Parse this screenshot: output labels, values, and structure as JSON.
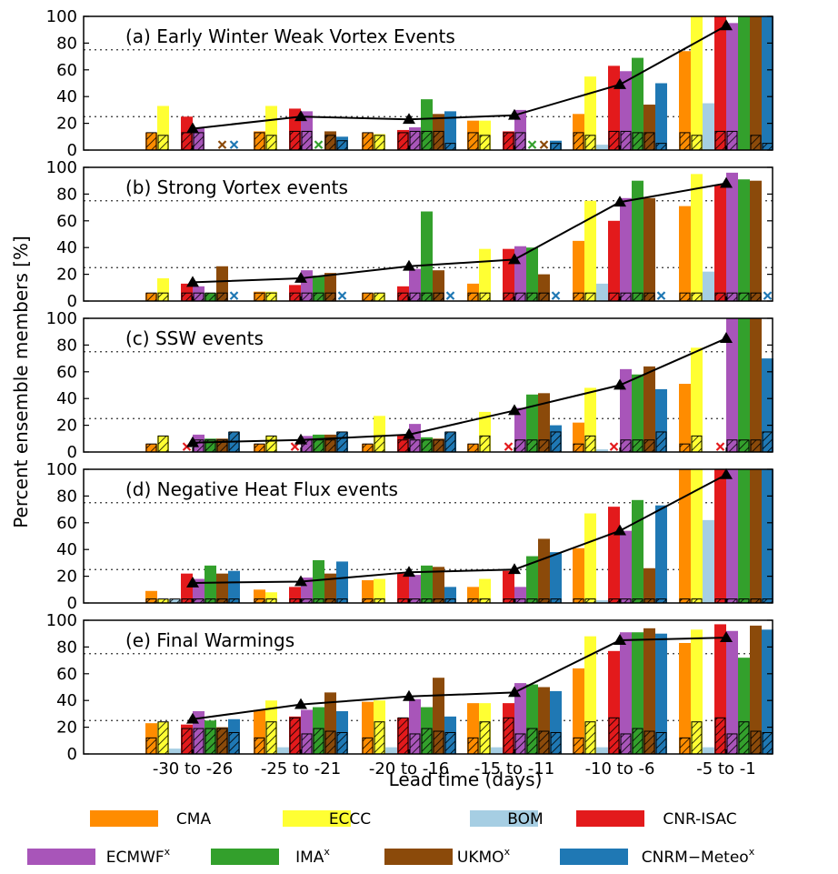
{
  "chart_data": {
    "type": "bar",
    "ylabel": "Percent ensemble members [%]",
    "xlabel": "Lead time (days)",
    "categories": [
      "-30 to -26",
      "-25 to -21",
      "-20 to -16",
      "-15 to -11",
      "-10 to -6",
      "-5 to -1"
    ],
    "ylim": [
      0,
      100
    ],
    "yticks": [
      0,
      20,
      40,
      60,
      80,
      100
    ],
    "reference_lines": [
      25,
      75
    ],
    "models": [
      {
        "name": "CMA",
        "sup": "",
        "color": "#ff8c00"
      },
      {
        "name": "ECCC",
        "sup": "",
        "color": "#ffff33"
      },
      {
        "name": "BOM",
        "sup": "",
        "color": "#a6cee3"
      },
      {
        "name": "CNR-ISAC",
        "sup": "",
        "color": "#e31a1c"
      },
      {
        "name": "ECMWF",
        "sup": "x",
        "color": "#a855b9"
      },
      {
        "name": "IMA",
        "sup": "x",
        "color": "#33a02c"
      },
      {
        "name": "UKMO",
        "sup": "x",
        "color": "#8b4a0a"
      },
      {
        "name": "CNRM−Meteo",
        "sup": "x",
        "color": "#1f78b4"
      }
    ],
    "panels": [
      {
        "title": "(a) Early Winter Weak Vortex Events",
        "values": [
          [
            13,
            33,
            null,
            25,
            17,
            null,
            null,
            null
          ],
          [
            14,
            33,
            null,
            31,
            29,
            null,
            14,
            10
          ],
          [
            13,
            12,
            null,
            15,
            17,
            38,
            27,
            29
          ],
          [
            22,
            22,
            null,
            14,
            30,
            null,
            null,
            7
          ],
          [
            27,
            55,
            4,
            63,
            59,
            69,
            34,
            50
          ],
          [
            74,
            100,
            35,
            100,
            95,
            100,
            100,
            100
          ]
        ],
        "hatched": [
          [
            13,
            11,
            null,
            13,
            13,
            null,
            null,
            null
          ],
          [
            13,
            11,
            null,
            14,
            14,
            null,
            11,
            7
          ],
          [
            13,
            11,
            null,
            13,
            14,
            14,
            14,
            5
          ],
          [
            13,
            11,
            null,
            13,
            13,
            null,
            null,
            5
          ],
          [
            13,
            11,
            null,
            14,
            14,
            13,
            13,
            5
          ],
          [
            13,
            11,
            null,
            14,
            14,
            null,
            11,
            5
          ]
        ],
        "crosses": [
          [
            null,
            null,
            null,
            null,
            null,
            null,
            "UKMO",
            "CNRM−Meteo"
          ],
          [
            null,
            null,
            null,
            null,
            null,
            "IMA",
            null,
            null
          ],
          [],
          [
            null,
            null,
            null,
            null,
            null,
            "IMA",
            "UKMO",
            null
          ],
          [],
          [
            null,
            null,
            null,
            null,
            null,
            "IMA",
            null,
            null
          ]
        ],
        "ensemble_mean": [
          16,
          25,
          23,
          26,
          49,
          93
        ]
      },
      {
        "title": "(b) Strong Vortex events",
        "values": [
          [
            6,
            17,
            null,
            13,
            11,
            6,
            26,
            null
          ],
          [
            7,
            7,
            null,
            12,
            23,
            19,
            21,
            null
          ],
          [
            6,
            6,
            null,
            11,
            24,
            67,
            23,
            null
          ],
          [
            13,
            39,
            null,
            39,
            41,
            40,
            20,
            null
          ],
          [
            45,
            75,
            13,
            60,
            77,
            90,
            77,
            null
          ],
          [
            71,
            95,
            22,
            87,
            96,
            91,
            90,
            null
          ]
        ],
        "hatched": [
          [
            6,
            6,
            null,
            6,
            6,
            6,
            6,
            null
          ],
          [
            6,
            6,
            null,
            6,
            6,
            6,
            6,
            null
          ],
          [
            6,
            6,
            null,
            6,
            6,
            6,
            6,
            null
          ],
          [
            6,
            6,
            null,
            6,
            6,
            6,
            6,
            null
          ],
          [
            6,
            6,
            null,
            6,
            6,
            6,
            6,
            null
          ],
          [
            6,
            6,
            null,
            6,
            6,
            6,
            6,
            null
          ]
        ],
        "crosses": [
          [
            null,
            null,
            null,
            null,
            null,
            null,
            null,
            "CNRM−Meteo"
          ],
          [
            null,
            null,
            null,
            null,
            null,
            null,
            null,
            "CNRM−Meteo"
          ],
          [
            null,
            null,
            null,
            null,
            null,
            null,
            null,
            "CNRM−Meteo"
          ],
          [
            null,
            null,
            null,
            null,
            null,
            null,
            null,
            "CNRM−Meteo"
          ],
          [
            null,
            null,
            null,
            null,
            null,
            null,
            null,
            "CNRM−Meteo"
          ],
          [
            null,
            null,
            null,
            null,
            null,
            null,
            null,
            "CNRM−Meteo"
          ]
        ],
        "ensemble_mean": [
          14,
          17,
          26,
          31,
          74,
          88
        ]
      },
      {
        "title": "(c) SSW events",
        "values": [
          [
            6,
            12,
            null,
            null,
            13,
            10,
            10,
            15
          ],
          [
            6,
            12,
            null,
            null,
            12,
            13,
            13,
            15
          ],
          [
            6,
            27,
            null,
            13,
            21,
            11,
            10,
            15
          ],
          [
            6,
            30,
            null,
            null,
            33,
            43,
            44,
            20
          ],
          [
            22,
            48,
            2,
            null,
            62,
            58,
            64,
            47
          ],
          [
            51,
            78,
            null,
            null,
            100,
            100,
            100,
            70
          ]
        ],
        "hatched": [
          [
            6,
            12,
            null,
            null,
            9,
            9,
            9,
            15
          ],
          [
            6,
            12,
            null,
            null,
            9,
            9,
            9,
            15
          ],
          [
            6,
            12,
            null,
            9,
            9,
            9,
            9,
            15
          ],
          [
            6,
            12,
            null,
            null,
            9,
            9,
            9,
            15
          ],
          [
            6,
            12,
            null,
            null,
            9,
            9,
            9,
            15
          ],
          [
            6,
            12,
            null,
            null,
            9,
            9,
            9,
            15
          ]
        ],
        "crosses": [
          [
            null,
            null,
            null,
            "CNR-ISAC",
            null,
            null,
            null,
            null
          ],
          [
            null,
            null,
            null,
            "CNR-ISAC",
            null,
            null,
            null,
            null
          ],
          [],
          [
            null,
            null,
            null,
            "CNR-ISAC",
            null,
            null,
            null,
            null
          ],
          [
            null,
            null,
            null,
            "CNR-ISAC",
            null,
            null,
            null,
            null
          ],
          [
            null,
            null,
            null,
            "CNR-ISAC",
            null,
            null,
            null,
            null
          ]
        ],
        "ensemble_mean": [
          7,
          9,
          13,
          31,
          50,
          85
        ]
      },
      {
        "title": "(d) Negative Heat Flux events",
        "values": [
          [
            9,
            3,
            3,
            22,
            18,
            28,
            22,
            24
          ],
          [
            10,
            8,
            null,
            12,
            19,
            32,
            22,
            31
          ],
          [
            17,
            18,
            null,
            22,
            21,
            28,
            27,
            12
          ],
          [
            12,
            18,
            null,
            24,
            12,
            35,
            48,
            38
          ],
          [
            41,
            67,
            2,
            72,
            54,
            77,
            26,
            73
          ],
          [
            100,
            100,
            62,
            100,
            100,
            100,
            100,
            100
          ]
        ],
        "hatched": [
          [
            3,
            3,
            3,
            3,
            3,
            3,
            3,
            3
          ],
          [
            3,
            3,
            null,
            3,
            3,
            3,
            3,
            3
          ],
          [
            3,
            3,
            null,
            3,
            3,
            3,
            3,
            3
          ],
          [
            3,
            3,
            null,
            3,
            3,
            3,
            3,
            3
          ],
          [
            3,
            3,
            null,
            3,
            3,
            3,
            3,
            3
          ],
          [
            3,
            3,
            null,
            3,
            3,
            3,
            3,
            3
          ]
        ],
        "crosses": [
          [],
          [],
          [],
          [],
          [],
          []
        ],
        "ensemble_mean": [
          15,
          16,
          23,
          25,
          54,
          96
        ]
      },
      {
        "title": "(e) Final Warmings",
        "values": [
          [
            23,
            24,
            4,
            22,
            32,
            25,
            20,
            26
          ],
          [
            33,
            40,
            5,
            28,
            33,
            35,
            46,
            32
          ],
          [
            39,
            40,
            5,
            27,
            41,
            35,
            57,
            28
          ],
          [
            38,
            38,
            5,
            38,
            53,
            52,
            50,
            47
          ],
          [
            64,
            88,
            5,
            77,
            91,
            91,
            94,
            90
          ],
          [
            83,
            93,
            5,
            97,
            92,
            72,
            96,
            93
          ]
        ],
        "hatched": [
          [
            12,
            24,
            null,
            19,
            19,
            19,
            19,
            16
          ],
          [
            12,
            24,
            null,
            27,
            15,
            19,
            17,
            16
          ],
          [
            12,
            24,
            null,
            27,
            15,
            19,
            17,
            16
          ],
          [
            12,
            24,
            null,
            27,
            15,
            19,
            17,
            16
          ],
          [
            12,
            24,
            null,
            27,
            15,
            19,
            17,
            16
          ],
          [
            12,
            24,
            null,
            27,
            15,
            24,
            17,
            16
          ]
        ],
        "crosses": [
          [],
          [],
          [],
          [],
          [],
          []
        ],
        "ensemble_mean": [
          26,
          37,
          43,
          46,
          85,
          87
        ]
      }
    ]
  }
}
